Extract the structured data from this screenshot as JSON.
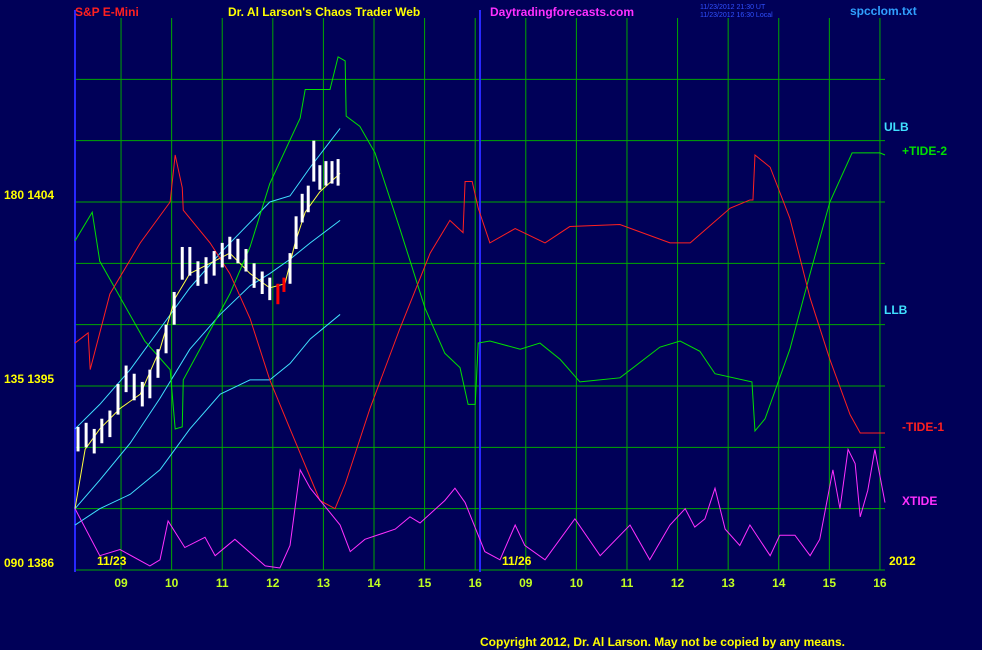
{
  "chart_data": {
    "type": "line",
    "instrument": "S&P E-Mini",
    "title": "Dr. Al Larson's Chaos Trader Web",
    "site": "Daytradingforecasts.com",
    "timestamps": [
      "11/23/2012 21:30 UT",
      "11/23/2012 16:30 Local"
    ],
    "file": "spcclom.txt",
    "copyright": "Copyright 2012, Dr. Al Larson. May not be copied by any means.",
    "annotations": [
      "11/23",
      "11/26",
      "2012"
    ],
    "xlim": [
      0.09,
      16.1
    ],
    "ylim": [
      1386,
      1413
    ],
    "yticks": [
      {
        "value": 1386,
        "label": "090 1386"
      },
      {
        "value": 1395,
        "label": "135 1395"
      },
      {
        "value": 1404,
        "label": "180 1404"
      }
    ],
    "ygrid": [
      1389,
      1392,
      1398,
      1401,
      1407,
      1410
    ],
    "xticks": [
      {
        "value": 1,
        "label": "09"
      },
      {
        "value": 2,
        "label": "10"
      },
      {
        "value": 3,
        "label": "11"
      },
      {
        "value": 4,
        "label": "12"
      },
      {
        "value": 5,
        "label": "13"
      },
      {
        "value": 6,
        "label": "14"
      },
      {
        "value": 7,
        "label": "15"
      },
      {
        "value": 8,
        "label": "16"
      },
      {
        "value": 9,
        "label": "09"
      },
      {
        "value": 10,
        "label": "10"
      },
      {
        "value": 11,
        "label": "11"
      },
      {
        "value": 12,
        "label": "12"
      },
      {
        "value": 13,
        "label": "13"
      },
      {
        "value": 14,
        "label": "14"
      },
      {
        "value": 15,
        "label": "15"
      },
      {
        "value": 16,
        "label": "16"
      }
    ],
    "grid": true,
    "price": [
      {
        "color": "#ffffff",
        "x": [
          0.15,
          0.31,
          0.47,
          0.62,
          0.78,
          0.94,
          1.1,
          1.26,
          1.42,
          1.57,
          1.73,
          1.89,
          2.05,
          2.21,
          2.36,
          2.52,
          2.68,
          2.84,
          3.0,
          3.15,
          3.31,
          3.47,
          3.63,
          3.79,
          3.94,
          4.34,
          4.46,
          4.58,
          4.7,
          4.81,
          4.93,
          5.05,
          5.17,
          5.29
        ],
        "high": [
          1393.0,
          1393.2,
          1392.9,
          1393.4,
          1393.8,
          1395.1,
          1396.0,
          1395.6,
          1395.2,
          1395.8,
          1396.8,
          1398.0,
          1399.6,
          1401.8,
          1401.8,
          1401.1,
          1401.3,
          1401.6,
          1402.0,
          1402.3,
          1402.2,
          1401.7,
          1401.0,
          1400.6,
          1400.3,
          1401.5,
          1403.3,
          1404.4,
          1404.8,
          1407.0,
          1405.8,
          1406.0,
          1406.0,
          1406.1
        ],
        "low": [
          1391.8,
          1392.0,
          1391.7,
          1392.2,
          1392.5,
          1393.6,
          1394.7,
          1394.3,
          1394.0,
          1394.4,
          1395.4,
          1396.6,
          1398.0,
          1400.2,
          1400.4,
          1399.9,
          1400.0,
          1400.4,
          1400.8,
          1401.2,
          1401.0,
          1400.6,
          1399.8,
          1399.5,
          1399.2,
          1400.0,
          1401.7,
          1403.0,
          1403.5,
          1405.0,
          1404.6,
          1404.8,
          1404.9,
          1404.8
        ]
      },
      {
        "color": "#ff0000",
        "x": [
          4.1,
          4.22
        ],
        "high": [
          1400.0,
          1400.3
        ],
        "low": [
          1399.0,
          1399.6
        ]
      }
    ],
    "series": [
      {
        "name": "ULB",
        "color": "#40e0ff",
        "x": [
          0.09,
          0.58,
          1.18,
          1.77,
          2.36,
          2.96,
          3.55,
          3.94,
          4.34,
          4.74,
          5.33
        ],
        "values": [
          1392.9,
          1394.1,
          1395.8,
          1397.8,
          1399.8,
          1401.5,
          1403.0,
          1404.0,
          1404.3,
          1405.7,
          1407.6
        ]
      },
      {
        "color": "#40e0ff",
        "x": [
          0.09,
          0.58,
          1.18,
          1.77,
          2.36,
          2.96,
          3.55,
          3.94,
          4.34,
          4.74,
          5.33
        ],
        "values": [
          1389.0,
          1390.4,
          1392.2,
          1394.4,
          1396.8,
          1398.5,
          1399.9,
          1400.5,
          1401.2,
          1402.0,
          1403.1
        ]
      },
      {
        "name": "LLB",
        "color": "#40e0ff",
        "x": [
          0.09,
          0.58,
          1.18,
          1.77,
          2.36,
          2.96,
          3.55,
          3.94,
          4.34,
          4.74,
          5.33
        ],
        "values": [
          1388.2,
          1389.0,
          1389.7,
          1390.9,
          1392.9,
          1394.6,
          1395.3,
          1395.3,
          1396.1,
          1397.3,
          1398.5
        ]
      },
      {
        "color": "#ffff40",
        "x": [
          0.09,
          0.29,
          0.58,
          0.98,
          1.38,
          1.77,
          2.07,
          2.36,
          2.76,
          3.15,
          3.55,
          3.94,
          4.24,
          4.44,
          4.64,
          4.93,
          5.33
        ],
        "values": [
          1389.0,
          1391.9,
          1392.9,
          1393.9,
          1394.6,
          1396.8,
          1399.3,
          1400.5,
          1401.0,
          1401.5,
          1400.5,
          1399.8,
          1400.0,
          1402.0,
          1403.5,
          1404.5,
          1405.4
        ]
      },
      {
        "name": "+TIDE-2",
        "color": "#00e000",
        "x": [
          0.09,
          0.43,
          0.58,
          1.47,
          1.97,
          2.07,
          2.21,
          2.23,
          3.15,
          3.55,
          3.94,
          4.54,
          4.64,
          5.13,
          5.29,
          5.43,
          5.45,
          5.72,
          6.02,
          6.51,
          7.01,
          7.4,
          7.7,
          7.86,
          8.0,
          8.06,
          8.29,
          8.89,
          9.28,
          9.68,
          10.07,
          10.86,
          11.65,
          12.05,
          12.44,
          12.74,
          13.47,
          13.53,
          13.73,
          14.22,
          14.62,
          15.01,
          15.45,
          16.0,
          16.1
        ],
        "values": [
          1402.1,
          1403.5,
          1401.1,
          1397.2,
          1395.8,
          1392.9,
          1393.0,
          1395.3,
          1399.5,
          1401.8,
          1404.9,
          1408.1,
          1409.5,
          1409.5,
          1411.1,
          1410.9,
          1408.2,
          1407.7,
          1406.4,
          1402.7,
          1398.8,
          1396.6,
          1395.9,
          1394.1,
          1394.1,
          1397.1,
          1397.2,
          1396.8,
          1397.1,
          1396.3,
          1395.2,
          1395.4,
          1396.9,
          1397.2,
          1396.7,
          1395.6,
          1395.2,
          1392.8,
          1393.4,
          1396.8,
          1400.5,
          1404.0,
          1406.4,
          1406.4,
          1406.3
        ]
      },
      {
        "name": "-TIDE-1",
        "color": "#ff2020",
        "x": [
          0.09,
          0.35,
          0.39,
          0.78,
          1.38,
          1.97,
          2.07,
          2.21,
          2.23,
          2.76,
          3.15,
          3.55,
          3.94,
          4.34,
          4.93,
          5.23,
          5.43,
          5.92,
          6.51,
          7.11,
          7.5,
          7.76,
          7.8,
          7.94,
          8.06,
          8.29,
          8.79,
          9.38,
          9.87,
          10.86,
          11.85,
          12.25,
          13.04,
          13.43,
          13.49,
          13.53,
          13.83,
          14.22,
          14.62,
          15.01,
          15.41,
          15.61,
          16.1
        ],
        "values": [
          1397.1,
          1397.6,
          1395.8,
          1399.5,
          1402.0,
          1404.0,
          1406.3,
          1404.7,
          1403.6,
          1402.0,
          1400.5,
          1398.3,
          1395.3,
          1392.9,
          1389.4,
          1389.0,
          1390.2,
          1393.9,
          1397.8,
          1401.5,
          1403.1,
          1402.5,
          1405.0,
          1405.0,
          1403.7,
          1402.0,
          1402.7,
          1402.0,
          1402.8,
          1402.9,
          1402.0,
          1402.0,
          1403.7,
          1404.1,
          1404.1,
          1406.3,
          1405.7,
          1403.2,
          1399.3,
          1396.3,
          1393.6,
          1392.7,
          1392.7
        ]
      },
      {
        "name": "XTIDE",
        "color": "#ff30ff",
        "x": [
          0.09,
          0.58,
          0.98,
          1.57,
          1.77,
          1.93,
          2.26,
          2.66,
          2.86,
          3.25,
          3.85,
          4.14,
          4.34,
          4.54,
          4.74,
          5.33,
          5.53,
          5.82,
          6.42,
          6.71,
          6.91,
          7.4,
          7.6,
          7.8,
          8.19,
          8.49,
          8.79,
          8.98,
          9.38,
          9.97,
          10.47,
          11.06,
          11.45,
          11.85,
          12.15,
          12.34,
          12.54,
          12.74,
          12.94,
          13.23,
          13.43,
          13.83,
          14.02,
          14.32,
          14.62,
          14.81,
          15.07,
          15.21,
          15.37,
          15.51,
          15.61,
          15.76,
          15.9,
          16.1
        ],
        "values": [
          1389.0,
          1386.7,
          1387.0,
          1386.2,
          1386.5,
          1388.4,
          1387.1,
          1387.6,
          1386.7,
          1387.5,
          1386.2,
          1386.1,
          1387.2,
          1390.9,
          1390.0,
          1388.2,
          1386.9,
          1387.5,
          1388.0,
          1388.6,
          1388.3,
          1389.4,
          1390.0,
          1389.3,
          1386.9,
          1386.5,
          1388.2,
          1387.2,
          1386.5,
          1388.5,
          1386.7,
          1388.2,
          1386.5,
          1388.2,
          1389.0,
          1388.1,
          1388.5,
          1390.0,
          1388.0,
          1387.2,
          1388.2,
          1386.7,
          1387.7,
          1387.7,
          1386.7,
          1387.5,
          1390.9,
          1389.0,
          1391.9,
          1391.2,
          1388.6,
          1389.9,
          1391.9,
          1389.3
        ]
      }
    ]
  }
}
